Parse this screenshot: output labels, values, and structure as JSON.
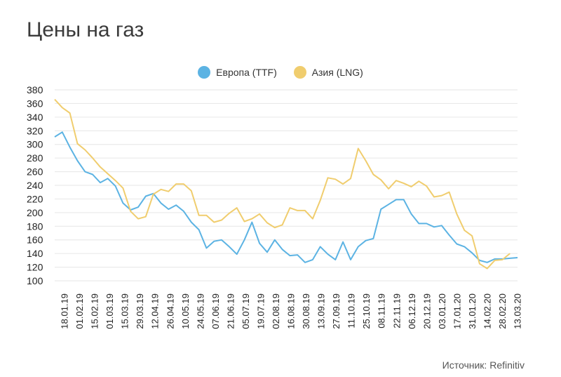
{
  "title": "Цены на газ",
  "source": "Источник: Refinitiv",
  "chart_data": {
    "type": "line",
    "title": "Цены на газ",
    "legend_position": "top-center",
    "grid": true,
    "ylim": [
      100,
      380
    ],
    "y_ticks": [
      100,
      120,
      140,
      160,
      180,
      200,
      220,
      240,
      260,
      280,
      300,
      320,
      340,
      360,
      380
    ],
    "x_tick_labels": [
      "18.01.19",
      "01.02.19",
      "15.02.19",
      "01.03.19",
      "15.03.19",
      "29.03.19",
      "12.04.19",
      "26.04.19",
      "10.05.19",
      "24.05.19",
      "07.06.19",
      "21.06.19",
      "05.07.19",
      "19.07.19",
      "02.08.19",
      "16.08.19",
      "30.08.19",
      "13.09.19",
      "27.09.19",
      "11.10.19",
      "25.10.19",
      "08.11.19",
      "22.11.19",
      "06.12.19",
      "20.12.19",
      "03.01.20",
      "17.01.20",
      "31.01.20",
      "14.02.20",
      "28.02.20",
      "13.03.20"
    ],
    "series": [
      {
        "name": "Европа (TTF)",
        "color": "#5cb3e3",
        "values": [
          311,
          318,
          296,
          276,
          260,
          256,
          244,
          250,
          239,
          214,
          204,
          208,
          224,
          228,
          214,
          205,
          211,
          202,
          186,
          175,
          148,
          158,
          160,
          150,
          139,
          160,
          186,
          155,
          142,
          160,
          146,
          137,
          138,
          127,
          131,
          150,
          139,
          131,
          157,
          131,
          150,
          159,
          162,
          205,
          212,
          219,
          219,
          198,
          184,
          184,
          179,
          181,
          167,
          154,
          150,
          141,
          130,
          127,
          132,
          132,
          133,
          134
        ]
      },
      {
        "name": "Азия (LNG)",
        "color": "#f0cd6e",
        "values": [
          366,
          354,
          346,
          301,
          292,
          280,
          267,
          257,
          247,
          236,
          202,
          191,
          194,
          227,
          234,
          231,
          242,
          242,
          232,
          196,
          196,
          186,
          189,
          199,
          207,
          187,
          191,
          198,
          185,
          178,
          182,
          207,
          203,
          203,
          191,
          218,
          251,
          249,
          242,
          250,
          294,
          276,
          256,
          248,
          235,
          247,
          243,
          238,
          246,
          239,
          223,
          225,
          230,
          198,
          174,
          166,
          125,
          118,
          130,
          131,
          140,
          null
        ]
      }
    ]
  }
}
